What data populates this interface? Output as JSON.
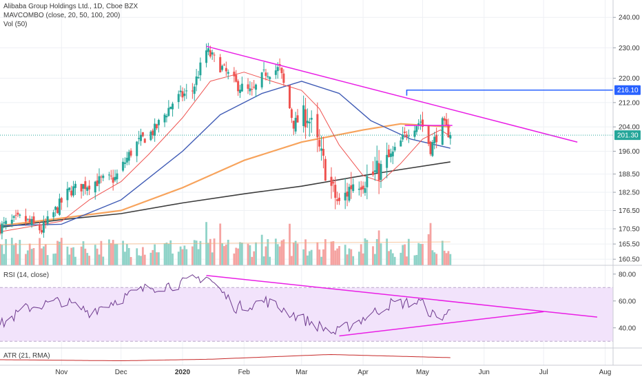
{
  "legend": {
    "title": "Alibaba Group Holdings Ltd., 1D, Cboe BZX",
    "ma": "MAVCOMBO (close, 20, 50, 100, 200)",
    "vol": "Vol (50)",
    "rsi": "RSI (14, close)",
    "atr": "ATR (21, RMA)"
  },
  "colors": {
    "up": "#26a69a",
    "down": "#ef5350",
    "vol_up": "#8fd3c8",
    "vol_down": "#f5a3a1",
    "ma20": "#ef5350",
    "ma50": "#3f5bb5",
    "ma100": "#f7a35c",
    "ma200": "#3c3c3c",
    "trend": "#e91ee5",
    "resistance": "#2962ff",
    "rsi_line": "#6e3a8e",
    "rsi_band": "#f2e3fb",
    "atr_line": "#c62828",
    "last_price_bg": "#26a69a",
    "level_bg": "#2962ff"
  },
  "chart_data": [
    {
      "type": "candlestick",
      "title": "Alibaba Group Holdings Ltd., 1D, Cboe BZX",
      "x_range": [
        "2019-10-01",
        "2020-08-05"
      ],
      "x_tick_labels": [
        "Nov",
        "Dec",
        "2020",
        "Feb",
        "Mar",
        "Apr",
        "May",
        "Jun",
        "Jul",
        "Aug"
      ],
      "x_tick_dates": [
        "2019-11-01",
        "2019-12-01",
        "2020-01-01",
        "2020-02-01",
        "2020-03-01",
        "2020-04-01",
        "2020-05-01",
        "2020-06-01",
        "2020-07-01",
        "2020-08-01"
      ],
      "y_range": [
        158.5,
        243
      ],
      "y_tick_labels": [
        "160.50",
        "165.50",
        "170.50",
        "176.50",
        "182.50",
        "188.50",
        "196.00",
        "204.00",
        "212.00",
        "220.00",
        "230.00",
        "240.00"
      ],
      "closes": [
        {
          "d": "2019-10-01",
          "c": 171
        },
        {
          "d": "2019-10-12",
          "c": 174
        },
        {
          "d": "2019-10-22",
          "c": 170
        },
        {
          "d": "2019-11-05",
          "c": 183
        },
        {
          "d": "2019-11-18",
          "c": 186
        },
        {
          "d": "2019-11-28",
          "c": 187
        },
        {
          "d": "2019-12-08",
          "c": 198
        },
        {
          "d": "2019-12-18",
          "c": 203
        },
        {
          "d": "2019-12-28",
          "c": 213
        },
        {
          "d": "2020-01-06",
          "c": 216
        },
        {
          "d": "2020-01-13",
          "c": 229
        },
        {
          "d": "2020-01-20",
          "c": 224
        },
        {
          "d": "2020-01-28",
          "c": 218
        },
        {
          "d": "2020-02-05",
          "c": 215
        },
        {
          "d": "2020-02-12",
          "c": 222
        },
        {
          "d": "2020-02-19",
          "c": 223
        },
        {
          "d": "2020-02-26",
          "c": 205
        },
        {
          "d": "2020-03-04",
          "c": 208
        },
        {
          "d": "2020-03-10",
          "c": 196
        },
        {
          "d": "2020-03-16",
          "c": 184
        },
        {
          "d": "2020-03-20",
          "c": 178
        },
        {
          "d": "2020-03-27",
          "c": 186
        },
        {
          "d": "2020-04-03",
          "c": 187
        },
        {
          "d": "2020-04-10",
          "c": 190
        },
        {
          "d": "2020-04-17",
          "c": 196
        },
        {
          "d": "2020-04-24",
          "c": 203
        },
        {
          "d": "2020-04-30",
          "c": 206
        },
        {
          "d": "2020-05-05",
          "c": 197
        },
        {
          "d": "2020-05-11",
          "c": 205
        },
        {
          "d": "2020-05-15",
          "c": 201.3
        }
      ],
      "moving_averages": {
        "ma20": [
          {
            "d": "2019-10-01",
            "c": 169.5
          },
          {
            "d": "2019-11-01",
            "c": 173
          },
          {
            "d": "2019-11-15",
            "c": 180
          },
          {
            "d": "2019-12-01",
            "c": 186
          },
          {
            "d": "2019-12-15",
            "c": 195
          },
          {
            "d": "2020-01-01",
            "c": 207
          },
          {
            "d": "2020-01-15",
            "c": 219
          },
          {
            "d": "2020-02-01",
            "c": 222
          },
          {
            "d": "2020-02-15",
            "c": 219
          },
          {
            "d": "2020-03-01",
            "c": 216
          },
          {
            "d": "2020-03-10",
            "c": 210
          },
          {
            "d": "2020-03-20",
            "c": 198
          },
          {
            "d": "2020-04-01",
            "c": 188
          },
          {
            "d": "2020-04-10",
            "c": 186
          },
          {
            "d": "2020-04-20",
            "c": 192
          },
          {
            "d": "2020-05-01",
            "c": 200
          },
          {
            "d": "2020-05-10",
            "c": 203
          },
          {
            "d": "2020-05-15",
            "c": 201
          }
        ],
        "ma50": [
          {
            "d": "2019-10-01",
            "c": 171.5
          },
          {
            "d": "2019-11-01",
            "c": 172
          },
          {
            "d": "2019-12-01",
            "c": 180
          },
          {
            "d": "2020-01-01",
            "c": 196
          },
          {
            "d": "2020-01-20",
            "c": 208
          },
          {
            "d": "2020-02-10",
            "c": 215
          },
          {
            "d": "2020-03-01",
            "c": 219
          },
          {
            "d": "2020-03-20",
            "c": 215
          },
          {
            "d": "2020-04-05",
            "c": 206
          },
          {
            "d": "2020-04-25",
            "c": 200
          },
          {
            "d": "2020-05-15",
            "c": 197
          }
        ],
        "ma100": [
          {
            "d": "2019-10-01",
            "c": 171.5
          },
          {
            "d": "2019-11-01",
            "c": 174
          },
          {
            "d": "2019-12-01",
            "c": 176.5
          },
          {
            "d": "2020-01-01",
            "c": 184
          },
          {
            "d": "2020-02-01",
            "c": 193
          },
          {
            "d": "2020-03-01",
            "c": 199
          },
          {
            "d": "2020-04-01",
            "c": 203
          },
          {
            "d": "2020-04-20",
            "c": 205
          },
          {
            "d": "2020-05-15",
            "c": 204
          }
        ],
        "ma200": [
          {
            "d": "2019-10-01",
            "c": 171
          },
          {
            "d": "2019-11-01",
            "c": 173.5
          },
          {
            "d": "2019-12-01",
            "c": 175.5
          },
          {
            "d": "2020-01-01",
            "c": 179
          },
          {
            "d": "2020-02-01",
            "c": 182
          },
          {
            "d": "2020-03-01",
            "c": 184.5
          },
          {
            "d": "2020-04-01",
            "c": 188
          },
          {
            "d": "2020-04-20",
            "c": 190
          },
          {
            "d": "2020-05-15",
            "c": 192.5
          }
        ]
      },
      "drawings": {
        "down_trendline": [
          {
            "d": "2020-01-13",
            "v": 230.5
          },
          {
            "d": "2020-07-18",
            "v": 199
          }
        ],
        "ma_trendline": [
          {
            "d": "2020-04-22",
            "v": 204.5
          },
          {
            "d": "2020-05-16",
            "v": 204.5
          }
        ],
        "resistance_level": {
          "v": 216.1,
          "from": "2020-04-23"
        }
      },
      "price_labels": [
        {
          "label": "216.10",
          "v": 216.1
        },
        {
          "label": "201.30",
          "v": 201.3
        }
      ],
      "last_price": 201.3
    },
    {
      "type": "bar",
      "title": "Vol (50)",
      "series": "volume",
      "note": "relative volume bars under the price pane"
    },
    {
      "type": "line",
      "title": "RSI (14, close)",
      "y_range": [
        25,
        85
      ],
      "y_tick_labels": [
        "40.00",
        "60.00",
        "80.00"
      ],
      "band": [
        30,
        70
      ],
      "values": [
        {
          "d": "2019-10-01",
          "v": 42
        },
        {
          "d": "2019-10-15",
          "v": 55
        },
        {
          "d": "2019-11-01",
          "v": 60
        },
        {
          "d": "2019-11-15",
          "v": 52
        },
        {
          "d": "2019-12-01",
          "v": 62
        },
        {
          "d": "2019-12-15",
          "v": 70
        },
        {
          "d": "2020-01-01",
          "v": 73
        },
        {
          "d": "2020-01-13",
          "v": 79
        },
        {
          "d": "2020-01-28",
          "v": 55
        },
        {
          "d": "2020-02-12",
          "v": 60
        },
        {
          "d": "2020-03-01",
          "v": 47
        },
        {
          "d": "2020-03-18",
          "v": 36
        },
        {
          "d": "2020-04-01",
          "v": 47
        },
        {
          "d": "2020-04-15",
          "v": 58
        },
        {
          "d": "2020-04-30",
          "v": 59
        },
        {
          "d": "2020-05-08",
          "v": 47
        },
        {
          "d": "2020-05-15",
          "v": 52
        }
      ],
      "drawings": {
        "upper_trendline": [
          {
            "d": "2020-01-13",
            "v": 79
          },
          {
            "d": "2020-07-28",
            "v": 48
          }
        ],
        "lower_trendline": [
          {
            "d": "2020-03-20",
            "v": 34
          },
          {
            "d": "2020-07-01",
            "v": 52
          }
        ]
      }
    },
    {
      "type": "line",
      "title": "ATR (21, RMA)",
      "values": [
        {
          "d": "2019-10-01",
          "v": 4.2
        },
        {
          "d": "2019-12-01",
          "v": 3.5
        },
        {
          "d": "2020-01-15",
          "v": 4.5
        },
        {
          "d": "2020-03-15",
          "v": 7.5
        },
        {
          "d": "2020-04-15",
          "v": 6.5
        },
        {
          "d": "2020-05-15",
          "v": 5.5
        }
      ]
    }
  ]
}
